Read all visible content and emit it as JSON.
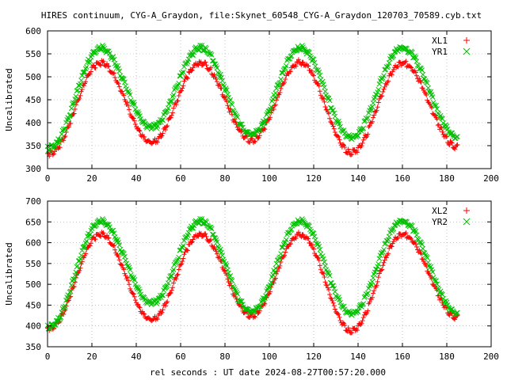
{
  "title": "HIRES continuum, CYG-A_Graydon, file:Skynet_60548_CYG-A_Graydon_120703_70589.cyb.txt",
  "xlabel": "rel seconds : UT date 2024-08-27T00:57:20.000",
  "colors": {
    "red": "#ff0000",
    "green": "#00c000",
    "frame": "#000000",
    "grid": "#a0a0a0"
  },
  "chart_data": [
    {
      "type": "scatter",
      "ylabel": "Uncalibrated",
      "xlim": [
        0,
        200
      ],
      "ylim": [
        300,
        600
      ],
      "xticks": [
        "0",
        "20",
        "40",
        "60",
        "80",
        "100",
        "120",
        "140",
        "160",
        "180",
        "200"
      ],
      "yticks": [
        "300",
        "350",
        "400",
        "450",
        "500",
        "550",
        "600"
      ],
      "grid": true,
      "legend": "top-right",
      "x_range": [
        0,
        185
      ],
      "series": [
        {
          "name": "XL1",
          "marker": "plus",
          "color": "#ff0000",
          "period": 45,
          "peaks": [
            24,
            69,
            114,
            160
          ],
          "peak_values": [
            530,
            530,
            532,
            530
          ],
          "troughs": [
            1,
            47,
            92,
            137,
            185
          ],
          "trough_values": [
            333,
            357,
            362,
            335,
            347
          ]
        },
        {
          "name": "YR1",
          "marker": "cross",
          "color": "#00c000",
          "period": 45,
          "peaks": [
            24,
            69,
            114,
            160
          ],
          "peak_values": [
            563,
            563,
            563,
            563
          ],
          "troughs": [
            1,
            47,
            92,
            137,
            185
          ],
          "trough_values": [
            345,
            390,
            375,
            368,
            368
          ]
        }
      ]
    },
    {
      "type": "scatter",
      "ylabel": "Uncalibrated",
      "xlim": [
        0,
        200
      ],
      "ylim": [
        350,
        700
      ],
      "xticks": [
        "0",
        "20",
        "40",
        "60",
        "80",
        "100",
        "120",
        "140",
        "160",
        "180",
        "200"
      ],
      "yticks": [
        "350",
        "400",
        "450",
        "500",
        "550",
        "600",
        "650",
        "700"
      ],
      "grid": true,
      "legend": "top-right",
      "x_range": [
        0,
        185
      ],
      "series": [
        {
          "name": "XL2",
          "marker": "plus",
          "color": "#ff0000",
          "period": 45,
          "peaks": [
            24,
            69,
            114,
            160
          ],
          "peak_values": [
            620,
            620,
            620,
            620
          ],
          "troughs": [
            1,
            47,
            92,
            137,
            185
          ],
          "trough_values": [
            395,
            415,
            425,
            388,
            420
          ]
        },
        {
          "name": "YR2",
          "marker": "cross",
          "color": "#00c000",
          "period": 45,
          "peaks": [
            24,
            69,
            114,
            160
          ],
          "peak_values": [
            652,
            652,
            652,
            652
          ],
          "troughs": [
            1,
            47,
            92,
            137,
            185
          ],
          "trough_values": [
            398,
            455,
            435,
            430,
            430
          ]
        }
      ]
    }
  ]
}
